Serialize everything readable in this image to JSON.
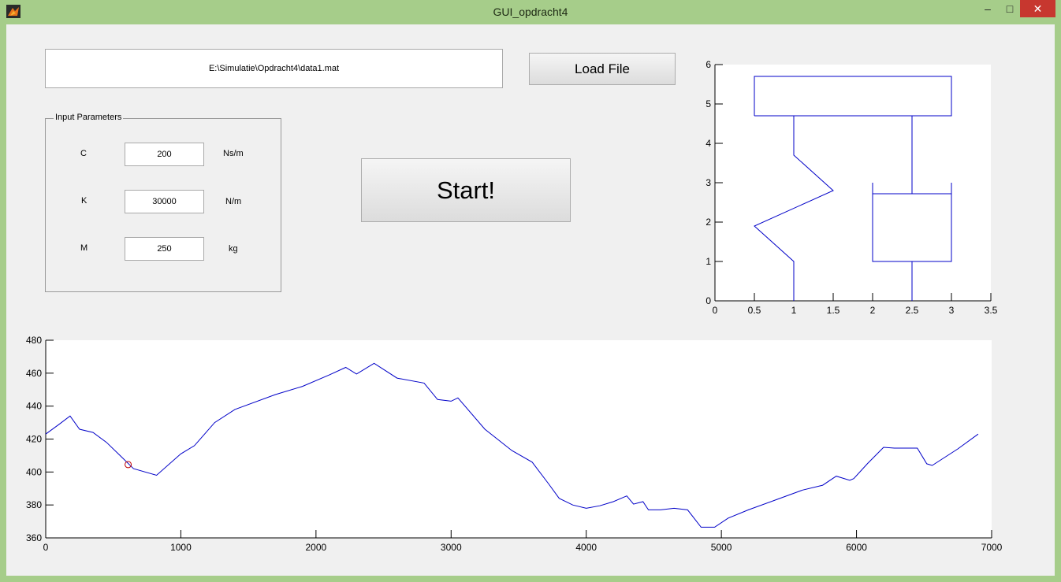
{
  "window": {
    "title": "GUI_opdracht4",
    "minimize_glyph": "–",
    "maximize_glyph": "□",
    "close_glyph": "✕",
    "app_icon": "matlab-logo-icon"
  },
  "file": {
    "path": "E:\\Simulatie\\Opdracht4\\data1.mat",
    "load_label": "Load File"
  },
  "params": {
    "title": "Input Parameters",
    "rows": [
      {
        "label": "C",
        "value": "200",
        "unit": "Ns/m"
      },
      {
        "label": "K",
        "value": "30000",
        "unit": "N/m"
      },
      {
        "label": "M",
        "value": "250",
        "unit": "kg"
      }
    ]
  },
  "start_label": "Start!",
  "colors": {
    "line": "#0000c8",
    "marker": "#c00000",
    "frame": "#a6cd8a",
    "close": "#c7372f"
  },
  "chart_data": [
    {
      "type": "line",
      "title": "",
      "xlabel": "",
      "ylabel": "",
      "xlim": [
        0,
        3.5
      ],
      "ylim": [
        0,
        6
      ],
      "xticks": [
        "0",
        "0.5",
        "1",
        "1.5",
        "2",
        "2.5",
        "3",
        "3.5"
      ],
      "yticks": [
        "0",
        "1",
        "2",
        "3",
        "4",
        "5",
        "6"
      ],
      "series": [
        {
          "points": [
            [
              0.5,
              4.7
            ],
            [
              3,
              4.7
            ],
            [
              3,
              5.7
            ],
            [
              0.5,
              5.7
            ],
            [
              0.5,
              4.7
            ]
          ]
        },
        {
          "points": [
            [
              1,
              0
            ],
            [
              1,
              1
            ],
            [
              0.5,
              1.9
            ],
            [
              1.5,
              2.8
            ],
            [
              1,
              3.7
            ],
            [
              1,
              4.7
            ]
          ]
        },
        {
          "points": [
            [
              2.5,
              0
            ],
            [
              2.5,
              1
            ]
          ]
        },
        {
          "points": [
            [
              2,
              3
            ],
            [
              2,
              1
            ],
            [
              3,
              1
            ],
            [
              3,
              3
            ]
          ]
        },
        {
          "points": [
            [
              2,
              2.72
            ],
            [
              3,
              2.72
            ]
          ]
        },
        {
          "points": [
            [
              2.5,
              2.72
            ],
            [
              2.5,
              4.7
            ]
          ]
        }
      ]
    },
    {
      "type": "line",
      "title": "",
      "xlabel": "",
      "ylabel": "",
      "xlim": [
        0,
        7000
      ],
      "ylim": [
        360,
        480
      ],
      "xticks": [
        "0",
        "1000",
        "2000",
        "3000",
        "4000",
        "5000",
        "6000",
        "7000"
      ],
      "yticks": [
        "360",
        "380",
        "400",
        "420",
        "440",
        "460",
        "480"
      ],
      "series": [
        {
          "points": [
            [
              0,
              423
            ],
            [
              100,
              429
            ],
            [
              180,
              434
            ],
            [
              250,
              426
            ],
            [
              350,
              424
            ],
            [
              450,
              418
            ],
            [
              550,
              410
            ],
            [
              650,
              402
            ],
            [
              820,
              398
            ],
            [
              1000,
              411
            ],
            [
              1100,
              416
            ],
            [
              1250,
              430
            ],
            [
              1400,
              438
            ],
            [
              1700,
              447
            ],
            [
              1900,
              452
            ],
            [
              2100,
              459
            ],
            [
              2220,
              463.5
            ],
            [
              2300,
              459.5
            ],
            [
              2430,
              466
            ],
            [
              2600,
              457
            ],
            [
              2800,
              454
            ],
            [
              2900,
              444
            ],
            [
              3000,
              443
            ],
            [
              3050,
              445
            ],
            [
              3250,
              426
            ],
            [
              3450,
              413
            ],
            [
              3600,
              406
            ],
            [
              3720,
              393
            ],
            [
              3800,
              384
            ],
            [
              3900,
              380
            ],
            [
              4000,
              378
            ],
            [
              4100,
              379.5
            ],
            [
              4200,
              382
            ],
            [
              4300,
              385.5
            ],
            [
              4350,
              380.5
            ],
            [
              4420,
              382
            ],
            [
              4460,
              377
            ],
            [
              4550,
              377
            ],
            [
              4650,
              378
            ],
            [
              4750,
              377
            ],
            [
              4850,
              366.5
            ],
            [
              4950,
              366.5
            ],
            [
              5050,
              372
            ],
            [
              5200,
              377
            ],
            [
              5400,
              383
            ],
            [
              5600,
              389
            ],
            [
              5750,
              392
            ],
            [
              5850,
              397.5
            ],
            [
              5950,
              395
            ],
            [
              5980,
              396
            ],
            [
              6080,
              405
            ],
            [
              6200,
              415
            ],
            [
              6280,
              414.5
            ],
            [
              6450,
              414.5
            ],
            [
              6520,
              405
            ],
            [
              6560,
              404
            ],
            [
              6750,
              414
            ],
            [
              6900,
              423
            ]
          ]
        }
      ],
      "markers": [
        {
          "x": 610,
          "y": 404.5
        }
      ]
    }
  ]
}
